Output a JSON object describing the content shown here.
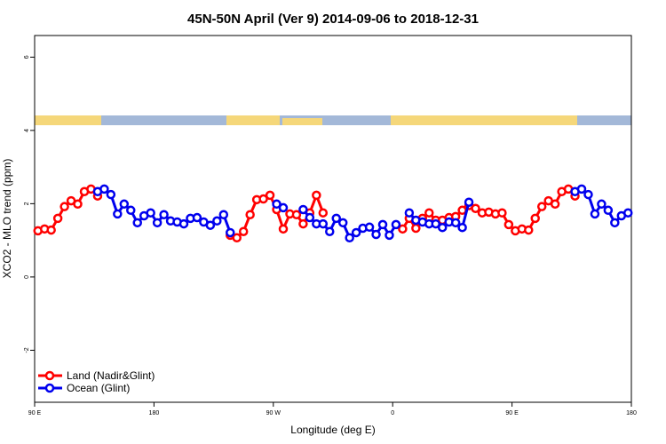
{
  "chart_data": {
    "type": "line",
    "title": "45N-50N April (Ver 9)   2014-09-06 to 2018-12-31",
    "x_label": "Longitude (deg E)",
    "y_label": "XCO2 - MLO trend (ppm)",
    "xlim": [
      90,
      540
    ],
    "ylim": [
      -3.42,
      6.59
    ],
    "xticks": [
      {
        "value": 90,
        "label": "90 E"
      },
      180,
      {
        "value": 270,
        "label": "90 W"
      },
      {
        "value": 360,
        "label": "0"
      },
      {
        "value": 450,
        "label": "90 E"
      },
      {
        "value": 540,
        "label": "180"
      }
    ],
    "yticks": [
      -2,
      0,
      2,
      4,
      6
    ],
    "legend": "bottom-left",
    "x": [
      92.5,
      97.5,
      102.5,
      107.5,
      112.5,
      117.5,
      122.5,
      127.5,
      132.5,
      137.5,
      142.5,
      147.5,
      152.5,
      157.5,
      162.5,
      167.5,
      172.5,
      177.5,
      182.5,
      187.5,
      192.5,
      197.5,
      202.5,
      207.5,
      212.5,
      217.5,
      222.5,
      227.5,
      232.5,
      237.5,
      242.5,
      247.5,
      252.5,
      257.5,
      262.5,
      267.5,
      272.5,
      277.5,
      282.5,
      287.5,
      292.5,
      297.5,
      302.5,
      307.5,
      312.5,
      317.5,
      322.5,
      327.5,
      332.5,
      337.5,
      342.5,
      347.5,
      352.5,
      357.5,
      362.5,
      367.5,
      372.5,
      377.5,
      382.5,
      387.5,
      392.5,
      397.5,
      402.5,
      407.5,
      412.5,
      417.5,
      422.5,
      427.5,
      432.5,
      437.5,
      442.5,
      447.5,
      452.5,
      457.5,
      462.5,
      467.5,
      472.5,
      477.5,
      482.5,
      487.5,
      492.5,
      497.5,
      502.5,
      507.5,
      512.5,
      517.5,
      522.5,
      527.5,
      532.5,
      537.5
    ],
    "series": [
      {
        "name": "Land (Nadir&Glint)",
        "color": "#ff0000",
        "values": [
          1.26,
          1.31,
          1.28,
          1.6,
          1.92,
          2.08,
          1.99,
          2.33,
          2.4,
          2.21,
          null,
          null,
          null,
          null,
          null,
          null,
          null,
          null,
          null,
          null,
          null,
          null,
          null,
          null,
          null,
          null,
          null,
          null,
          null,
          1.14,
          1.07,
          1.24,
          1.7,
          2.11,
          2.13,
          2.23,
          1.84,
          1.31,
          1.72,
          1.7,
          1.45,
          1.75,
          2.23,
          1.75,
          null,
          null,
          null,
          null,
          null,
          null,
          null,
          null,
          null,
          null,
          null,
          1.31,
          1.6,
          1.33,
          1.6,
          1.75,
          1.55,
          1.55,
          1.62,
          1.65,
          1.82,
          1.95,
          1.87,
          1.75,
          1.77,
          1.72,
          1.75,
          1.43,
          1.26,
          1.31,
          1.28,
          1.6,
          1.92,
          2.08,
          1.99,
          2.33,
          2.4,
          2.21,
          null,
          null,
          null,
          null,
          null,
          null,
          null,
          null
        ]
      },
      {
        "name": "Ocean (Glint)",
        "color": "#0000ee",
        "values": [
          null,
          null,
          null,
          null,
          null,
          null,
          null,
          null,
          null,
          2.33,
          2.4,
          2.25,
          1.72,
          1.99,
          1.82,
          1.48,
          1.67,
          1.75,
          1.48,
          1.7,
          1.53,
          1.5,
          1.45,
          1.6,
          1.62,
          1.5,
          1.41,
          1.53,
          1.7,
          1.21,
          null,
          null,
          null,
          null,
          null,
          null,
          1.99,
          1.89,
          null,
          null,
          1.84,
          1.62,
          1.45,
          1.45,
          1.24,
          1.6,
          1.48,
          1.07,
          1.21,
          1.33,
          1.36,
          1.16,
          1.43,
          1.14,
          1.43,
          null,
          1.75,
          1.55,
          1.5,
          1.45,
          1.45,
          1.35,
          1.5,
          1.48,
          1.35,
          2.04,
          null,
          null,
          null,
          null,
          null,
          null,
          null,
          null,
          null,
          null,
          null,
          null,
          null,
          null,
          null,
          2.33,
          2.4,
          2.25,
          1.72,
          1.99,
          1.82,
          1.48,
          1.67,
          1.75
        ]
      }
    ]
  }
}
